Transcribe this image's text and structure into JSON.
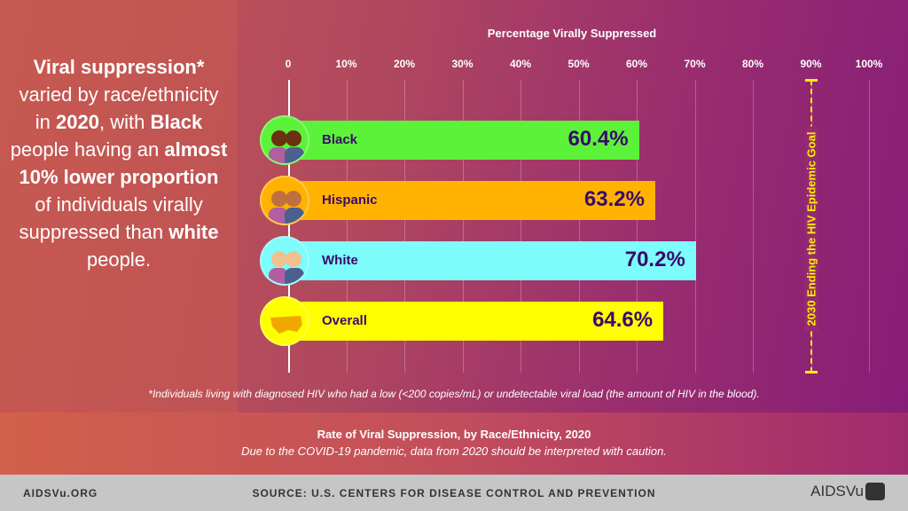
{
  "headline": {
    "p1": "Viral suppression*",
    "p2": " varied by race/ethnicity in ",
    "p3": "2020",
    "p4": ", with ",
    "p5": "Black",
    "p6": " people having an ",
    "p7": "almost 10% lower proportion",
    "p8": " of individuals virally suppressed than ",
    "p9": "white",
    "p10": " people."
  },
  "chart_data": {
    "type": "bar",
    "orientation": "horizontal",
    "xlabel": "Percentage Virally Suppressed",
    "xlim": [
      0,
      100
    ],
    "ticks": [
      "0",
      "10%",
      "20%",
      "30%",
      "40%",
      "50%",
      "60%",
      "70%",
      "80%",
      "90%",
      "100%"
    ],
    "categories": [
      "Black",
      "Hispanic",
      "White",
      "Overall"
    ],
    "values": [
      60.4,
      63.2,
      70.2,
      64.6
    ],
    "labels": [
      "60.4%",
      "63.2%",
      "70.2%",
      "64.6%"
    ],
    "colors": [
      "#5cf23a",
      "#ffb300",
      "#7dfcfc",
      "#ffff00"
    ],
    "icons": [
      "people-black-icon",
      "people-hispanic-icon",
      "people-white-icon",
      "us-map-icon"
    ],
    "reference_line": {
      "value": 90,
      "label": "2030 Ending the HIV Epidemic Goal",
      "color": "#ffee00"
    },
    "grid": true
  },
  "footnote": "*Individuals living with diagnosed HIV who had a low (<200 copies/mL) or undetectable viral load (the amount of HIV in the blood).",
  "band": {
    "title": "Rate of Viral Suppression, by Race/Ethnicity, 2020",
    "subtitle": "Due to the COVID-19 pandemic, data from 2020 should be interpreted with caution."
  },
  "footer": {
    "site": "AIDSVu.ORG",
    "source": "SOURCE: U.S. CENTERS FOR DISEASE CONTROL AND PREVENTION",
    "logo": "AIDSVu"
  }
}
